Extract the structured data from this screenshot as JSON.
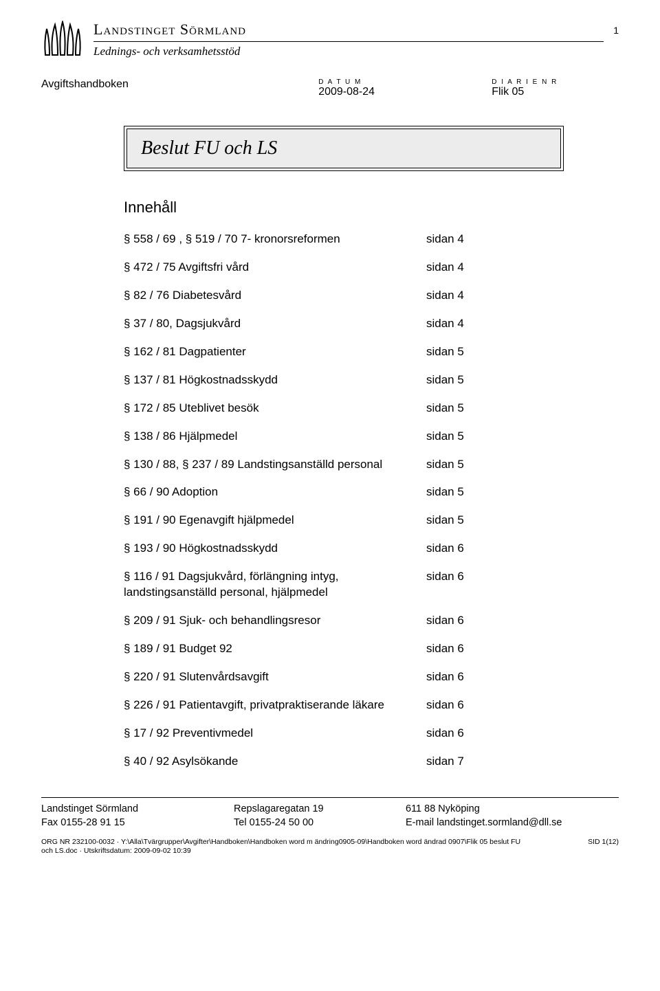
{
  "header": {
    "org_name": "Landstinget Sörmland",
    "org_sub": "Lednings- och verksamhetsstöd",
    "page_num": "1"
  },
  "meta": {
    "left_label": "Avgiftshandboken",
    "date_caption": "D A T U M",
    "date_value": "2009-08-24",
    "diary_caption": "D I A R I E N R",
    "diary_value": "Flik 05"
  },
  "title": "Beslut FU och LS",
  "section_heading": "Innehåll",
  "toc": [
    {
      "label": "§ 558 / 69 , § 519 / 70 7- kronorsreformen",
      "page": "sidan 4"
    },
    {
      "label": "§ 472 / 75 Avgiftsfri vård",
      "page": "sidan 4"
    },
    {
      "label": "§ 82 / 76 Diabetesvård",
      "page": "sidan 4"
    },
    {
      "label": "§ 37 / 80,  Dagsjukvård",
      "page": "sidan 4"
    },
    {
      "label": "§ 162 / 81 Dagpatienter",
      "page": "sidan 5"
    },
    {
      "label": "§ 137 / 81 Högkostnadsskydd",
      "page": "sidan 5"
    },
    {
      "label": "§ 172 / 85 Uteblivet besök",
      "page": "sidan 5"
    },
    {
      "label": "§ 138 / 86 Hjälpmedel",
      "page": "sidan 5"
    },
    {
      "label": "§ 130 / 88, § 237 / 89 Landstingsanställd personal",
      "page": "sidan 5"
    },
    {
      "label": "§ 66 / 90 Adoption",
      "page": "sidan 5"
    },
    {
      "label": "§ 191 / 90 Egenavgift hjälpmedel",
      "page": "sidan 5"
    },
    {
      "label": "§ 193 / 90 Högkostnadsskydd",
      "page": "sidan 6"
    },
    {
      "label": "§ 116 / 91 Dagsjukvård, förlängning intyg, landstingsanställd personal, hjälpmedel",
      "page": "sidan 6"
    },
    {
      "label": "§ 209 / 91 Sjuk- och behandlingsresor",
      "page": "sidan 6"
    },
    {
      "label": "§ 189 / 91 Budget 92",
      "page": "sidan 6"
    },
    {
      "label": "§ 220 / 91 Slutenvårdsavgift",
      "page": "sidan 6"
    },
    {
      "label": "§ 226 / 91 Patientavgift, privatpraktiserande läkare",
      "page": "sidan 6"
    },
    {
      "label": "§ 17 / 92 Preventivmedel",
      "page": "sidan 6"
    },
    {
      "label": "§ 40 / 92 Asylsökande",
      "page": "sidan 7"
    }
  ],
  "footer": {
    "row1": {
      "c1": "Landstinget Sörmland",
      "c2": "Repslagaregatan 19",
      "c3": "611 88 Nyköping"
    },
    "row2": {
      "c1": "Fax 0155-28 91 15",
      "c2": "Tel 0155-24 50 00",
      "c3": "E-mail landstinget.sormland@dll.se"
    },
    "fine_left": "ORG NR 232100-0032 · Y:\\Alla\\Tvärgrupper\\Avgifter\\Handboken\\Handboken word m ändring0905-09\\Handboken word ändrad 0907\\Flik 05 beslut FU och LS.doc · Utskriftsdatum: 2009-09-02 10:39",
    "fine_right": "SID 1(12)"
  }
}
